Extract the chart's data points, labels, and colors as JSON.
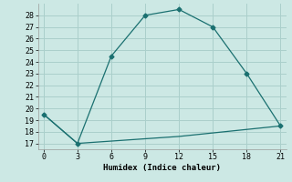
{
  "line1_x": [
    0,
    3,
    6,
    9,
    12,
    15,
    18,
    21
  ],
  "line1_y": [
    19.5,
    17.0,
    24.5,
    28.0,
    28.5,
    27.0,
    23.0,
    18.5
  ],
  "line2_x": [
    0,
    3,
    6,
    9,
    12,
    15,
    18,
    21
  ],
  "line2_y": [
    19.5,
    17.0,
    17.2,
    17.4,
    17.6,
    17.9,
    18.2,
    18.5
  ],
  "line_color": "#1a7070",
  "marker": "D",
  "marker_size": 2.5,
  "xlabel": "Humidex (Indice chaleur)",
  "xlim": [
    -0.5,
    21.5
  ],
  "ylim": [
    16.5,
    29.0
  ],
  "xticks": [
    0,
    3,
    6,
    9,
    12,
    15,
    18,
    21
  ],
  "yticks": [
    17,
    18,
    19,
    20,
    21,
    22,
    23,
    24,
    25,
    26,
    27,
    28
  ],
  "bg_color": "#cce8e4",
  "grid_color": "#aacfcb",
  "font_family": "monospace"
}
